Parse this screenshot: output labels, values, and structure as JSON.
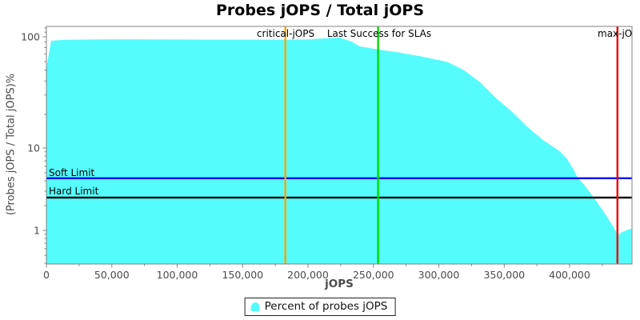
{
  "legend": {
    "label": "Percent of probes jOPS"
  },
  "accent_colors": {
    "area": "#55FCFC",
    "critical_line": "#FFA500",
    "sla_line": "#00DC00",
    "max_line": "#EE0000",
    "soft_limit_line": "#0808EE",
    "hard_limit_line": "#111111",
    "axis": "#808080"
  },
  "chart_data": {
    "type": "area",
    "title": "Probes jOPS / Total jOPS",
    "xlabel": "jOPS",
    "ylabel": "(Probes jOPS / Total jOPS)%",
    "y_scale": "log",
    "grid": false,
    "legend_position": "bottom-center",
    "xlim": [
      0,
      447700
    ],
    "ylim": [
      0.39,
      124
    ],
    "x_ticks_major": [
      0,
      50000,
      100000,
      150000,
      200000,
      250000,
      300000,
      350000,
      400000
    ],
    "x_tick_labels": [
      "0",
      "50,000",
      "100,000",
      "150,000",
      "200,000",
      "250,000",
      "300,000",
      "350,000",
      "400,000"
    ],
    "x_minor_step": 25000,
    "y_ticks_major": [
      100,
      10,
      1
    ],
    "y_tick_labels": [
      "100",
      "10",
      "1"
    ],
    "y_ticks_minor": [
      120,
      110,
      90,
      80,
      70,
      60,
      50,
      40,
      30,
      20,
      9,
      8,
      7,
      6,
      5,
      4,
      3,
      2,
      0.9,
      0.8,
      0.7,
      0.6,
      0.5,
      0.4
    ],
    "series": [
      {
        "name": "Percent of probes jOPS",
        "color": "#55FCFC",
        "points": [
          [
            200,
            55
          ],
          [
            3700,
            92
          ],
          [
            13000,
            94
          ],
          [
            50000,
            95
          ],
          [
            100000,
            94.6
          ],
          [
            150000,
            94.3
          ],
          [
            182700,
            94.2
          ],
          [
            200000,
            94.8
          ],
          [
            215000,
            97.3
          ],
          [
            224000,
            98.4
          ],
          [
            233400,
            90.5
          ],
          [
            239500,
            82
          ],
          [
            253600,
            76.9
          ],
          [
            270000,
            72
          ],
          [
            288400,
            66
          ],
          [
            306700,
            59.3
          ],
          [
            319000,
            50.2
          ],
          [
            331200,
            39.3
          ],
          [
            343400,
            28.3
          ],
          [
            355600,
            21.4
          ],
          [
            367800,
            15.4
          ],
          [
            380000,
            11.7
          ],
          [
            392200,
            9.2
          ],
          [
            398000,
            7.4
          ],
          [
            403000,
            5.5
          ],
          [
            406000,
            4.4
          ],
          [
            411000,
            3.6
          ],
          [
            418500,
            2.5
          ],
          [
            425900,
            1.7
          ],
          [
            432000,
            1.2
          ],
          [
            435000,
            1.0
          ],
          [
            436900,
            0.87
          ],
          [
            439300,
            0.94
          ],
          [
            443000,
            1.0
          ],
          [
            447300,
            1.05
          ]
        ]
      }
    ],
    "markers_vertical": [
      {
        "label": "critical-jOPS",
        "x": 182700,
        "color": "#FFA500"
      },
      {
        "label": "Last Success for SLAs",
        "x": 253600,
        "color": "#00DC00"
      },
      {
        "label": "max-jOPS",
        "x": 436600,
        "color": "#EE0000",
        "label_visible": "max-jOP"
      }
    ],
    "markers_horizontal": [
      {
        "label": "Soft Limit",
        "y": 4.3,
        "color": "#0808EE"
      },
      {
        "label": "Hard Limit",
        "y": 2.5,
        "color": "#111111"
      }
    ]
  }
}
